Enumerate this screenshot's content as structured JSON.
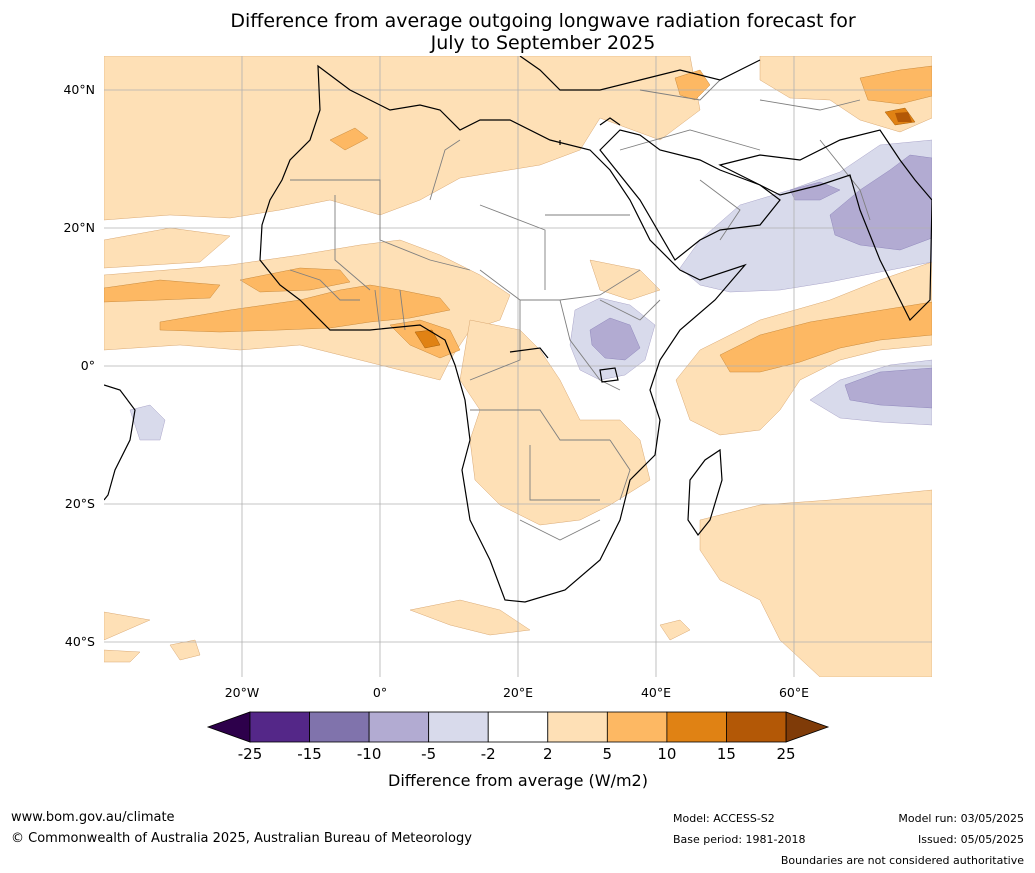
{
  "title": {
    "line1": "Difference from average outgoing longwave radiation forecast for",
    "line2": "July to September 2025"
  },
  "map": {
    "lat_labels": [
      "40°N",
      "20°N",
      "0°",
      "20°S",
      "40°S"
    ],
    "lon_labels": [
      "20°W",
      "0°",
      "20°E",
      "40°E",
      "60°E"
    ],
    "extent": {
      "lon_min": -40,
      "lon_max": 80,
      "lat_min": -45,
      "lat_max": 45
    },
    "colors": {
      "land_outline": "#000000",
      "country_border": "#7f7f7f",
      "gridline": "#b0b0b0"
    }
  },
  "colorbar": {
    "label": "Difference from average (W/m2)",
    "tick_labels": [
      "-25",
      "-15",
      "-10",
      "-5",
      "-2",
      "2",
      "5",
      "10",
      "15",
      "25"
    ],
    "bins": [
      {
        "range": "< -25",
        "color": "#2d004b"
      },
      {
        "range": "-25 to -15",
        "color": "#542788"
      },
      {
        "range": "-15 to -10",
        "color": "#8073ac"
      },
      {
        "range": "-10 to -5",
        "color": "#b2abd2"
      },
      {
        "range": "-5 to -2",
        "color": "#d8daeb"
      },
      {
        "range": "-2 to 2",
        "color": "#ffffff"
      },
      {
        "range": "2 to 5",
        "color": "#fee0b6"
      },
      {
        "range": "5 to 10",
        "color": "#fdb863"
      },
      {
        "range": "10 to 15",
        "color": "#e08214"
      },
      {
        "range": "15 to 25",
        "color": "#b35806"
      },
      {
        "range": "> 25",
        "color": "#7f3b08"
      }
    ]
  },
  "footer": {
    "website": "www.bom.gov.au/climate",
    "copyright": "© Commonwealth of Australia 2025, Australian Bureau of Meteorology",
    "model": "Model: ACCESS-S2",
    "base_period": "Base period: 1981-2018",
    "model_run": "Model run: 03/05/2025",
    "issued": "Issued: 05/05/2025",
    "disclaimer": "Boundaries are not considered authoritative"
  }
}
